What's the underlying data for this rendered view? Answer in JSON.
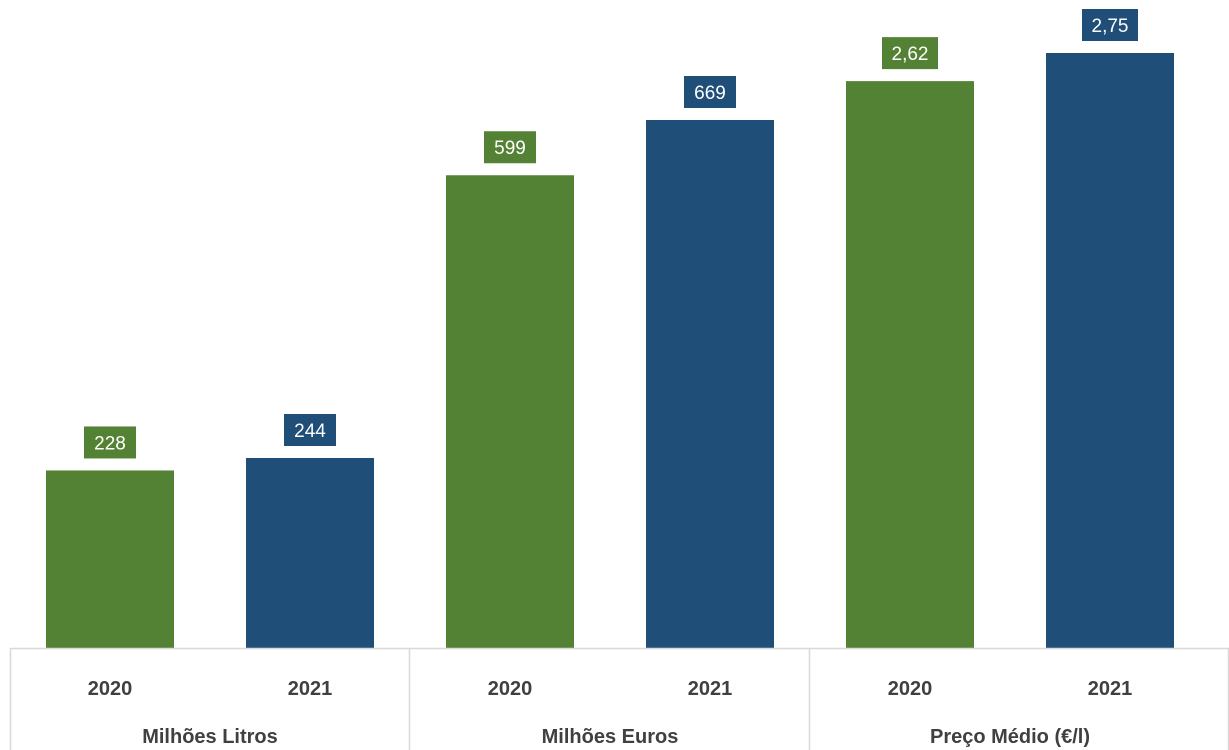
{
  "chart_data": {
    "type": "bar",
    "groups": [
      {
        "name": "Milhões Litros",
        "items": [
          {
            "year": "2020",
            "value": 228,
            "label": "228",
            "color": "#548235"
          },
          {
            "year": "2021",
            "value": 244,
            "label": "244",
            "color": "#1F4E79"
          }
        ]
      },
      {
        "name": "Milhões Euros",
        "items": [
          {
            "year": "2020",
            "value": 599,
            "label": "599",
            "color": "#548235"
          },
          {
            "year": "2021",
            "value": 669,
            "label": "669",
            "color": "#1F4E79"
          }
        ]
      },
      {
        "name": "Preço Médio (€/l)",
        "items": [
          {
            "year": "2020",
            "value": 2.62,
            "label": "2,62",
            "color": "#548235"
          },
          {
            "year": "2021",
            "value": 2.75,
            "label": "2,75",
            "color": "#1F4E79"
          }
        ]
      }
    ],
    "colors": {
      "year_2020": "#548235",
      "year_2021": "#1F4E79",
      "axis": "#D9D9D9"
    },
    "grid": false,
    "legend": "none"
  }
}
